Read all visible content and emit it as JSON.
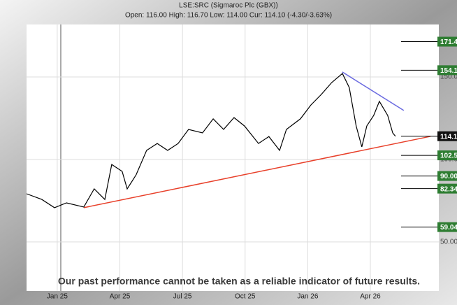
{
  "chart_data": {
    "type": "line",
    "title": "LSE:SRC (Sigmaroc Plc (GBX))",
    "subtitle": "Open: 116.00 High: 116.70 Low: 114.00 Cur: 114.10 (-4.30/-3.63%)",
    "disclaimer": "Our past performance cannot be taken as a reliable indicator of future results.",
    "x": [
      -1.47,
      -0.74,
      -0.13,
      0.44,
      1.27,
      1.77,
      2.28,
      2.61,
      3.11,
      3.35,
      3.78,
      4.28,
      4.79,
      5.29,
      5.79,
      6.29,
      6.96,
      7.47,
      7.97,
      8.47,
      8.97,
      9.64,
      10.14,
      10.65,
      10.98,
      11.65,
      12.15,
      12.65,
      13.15,
      13.66,
      13.99,
      14.32,
      14.59,
      14.83,
      15.16,
      15.43,
      15.83,
      16.07,
      16.2
    ],
    "series": [
      {
        "name": "LSE:SRC",
        "color": "#000000",
        "values": [
          79.2,
          75.8,
          70.8,
          73.7,
          71.2,
          82.2,
          75.8,
          97,
          92.8,
          82.2,
          90.7,
          105.5,
          109.7,
          105.5,
          109.7,
          118.2,
          116.1,
          124.6,
          118.2,
          125.4,
          120.3,
          109.7,
          113.9,
          105.5,
          118.2,
          124.6,
          133,
          139.4,
          146.6,
          152.1,
          143.6,
          120.3,
          107.6,
          120.3,
          126.7,
          135.2,
          126.7,
          116.1,
          114.1
        ]
      }
    ],
    "trend_lines": [
      {
        "color": "#e8402a",
        "x": [
          1.27,
          17.88
        ],
        "y": [
          70.8,
          114
        ]
      },
      {
        "color": "#6a6ae0",
        "x": [
          13.66,
          16.6
        ],
        "y": [
          153,
          129.7
        ]
      }
    ],
    "levels": [
      {
        "value": 171.4,
        "label": "171.4",
        "color": "#2e7d32"
      },
      {
        "value": 154.1,
        "label": "154.1",
        "color": "#2e7d32"
      },
      {
        "value": 114.1,
        "label": "114.1",
        "color": "#111111"
      },
      {
        "value": 102.5,
        "label": "102.5",
        "color": "#2e7d32"
      },
      {
        "value": 90,
        "label": "90.00",
        "color": "#2e7d32"
      },
      {
        "value": 82.34,
        "label": "82.34",
        "color": "#2e7d32"
      },
      {
        "value": 59.04,
        "label": "59.04",
        "color": "#2e7d32"
      }
    ],
    "xlim": [
      -1.47,
      18.28
    ],
    "xticks": [
      {
        "value": 0,
        "label": "Jan 25"
      },
      {
        "value": 3,
        "label": "Apr 25"
      },
      {
        "value": 6,
        "label": "Jul 25"
      },
      {
        "value": 9,
        "label": "Oct 25"
      },
      {
        "value": 12,
        "label": "Jan 26"
      },
      {
        "value": 15,
        "label": "Apr 26"
      }
    ],
    "ylim": [
      20.3,
      181.8
    ],
    "yticks": [
      {
        "value": 50,
        "label": "50.00"
      },
      {
        "value": 100,
        "label": "100.0"
      },
      {
        "value": 150,
        "label": "150.0"
      }
    ],
    "grid": true
  }
}
